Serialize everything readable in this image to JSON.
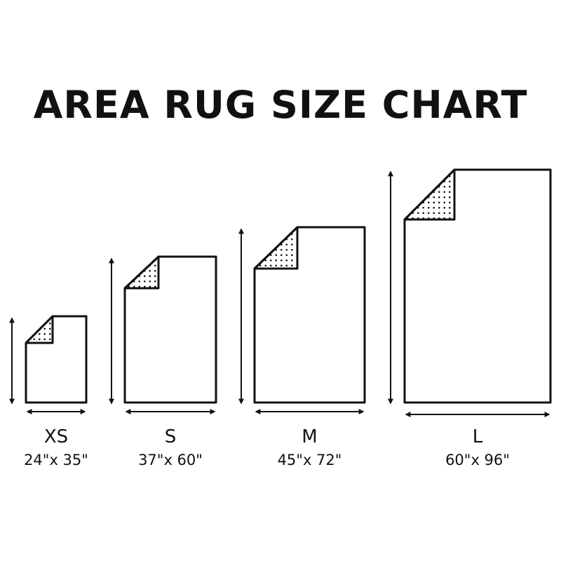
{
  "title": "AREA RUG SIZE CHART",
  "rugs": [
    {
      "size": "XS",
      "dimensions": "24\"x 35\""
    },
    {
      "size": "S",
      "dimensions": "37\"x 60\""
    },
    {
      "size": "M",
      "dimensions": "45\"x 72\""
    },
    {
      "size": "L",
      "dimensions": "60\"x 96\""
    }
  ],
  "colors": {
    "stroke": "#111111",
    "background": "#ffffff"
  }
}
